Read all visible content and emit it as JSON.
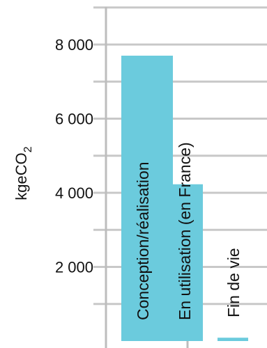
{
  "chart_data": {
    "type": "bar",
    "categories": [
      "Conception/réalisation",
      "En utilisation (en France)",
      "Fin de vie"
    ],
    "values": [
      7700,
      4230,
      90
    ],
    "ylabel_main": "kgeCO",
    "ylabel_sub": "2",
    "yticks": [
      "2 000",
      "4 000",
      "6 000",
      "8 000"
    ],
    "ytick_values": [
      2000,
      4000,
      6000,
      8000
    ],
    "ylim": [
      0,
      9000
    ],
    "grid": true,
    "colors": {
      "bar": "#6BCBDD",
      "grid": "#C8C8C8",
      "axis": "#BDBDBD",
      "text": "#111111"
    }
  }
}
